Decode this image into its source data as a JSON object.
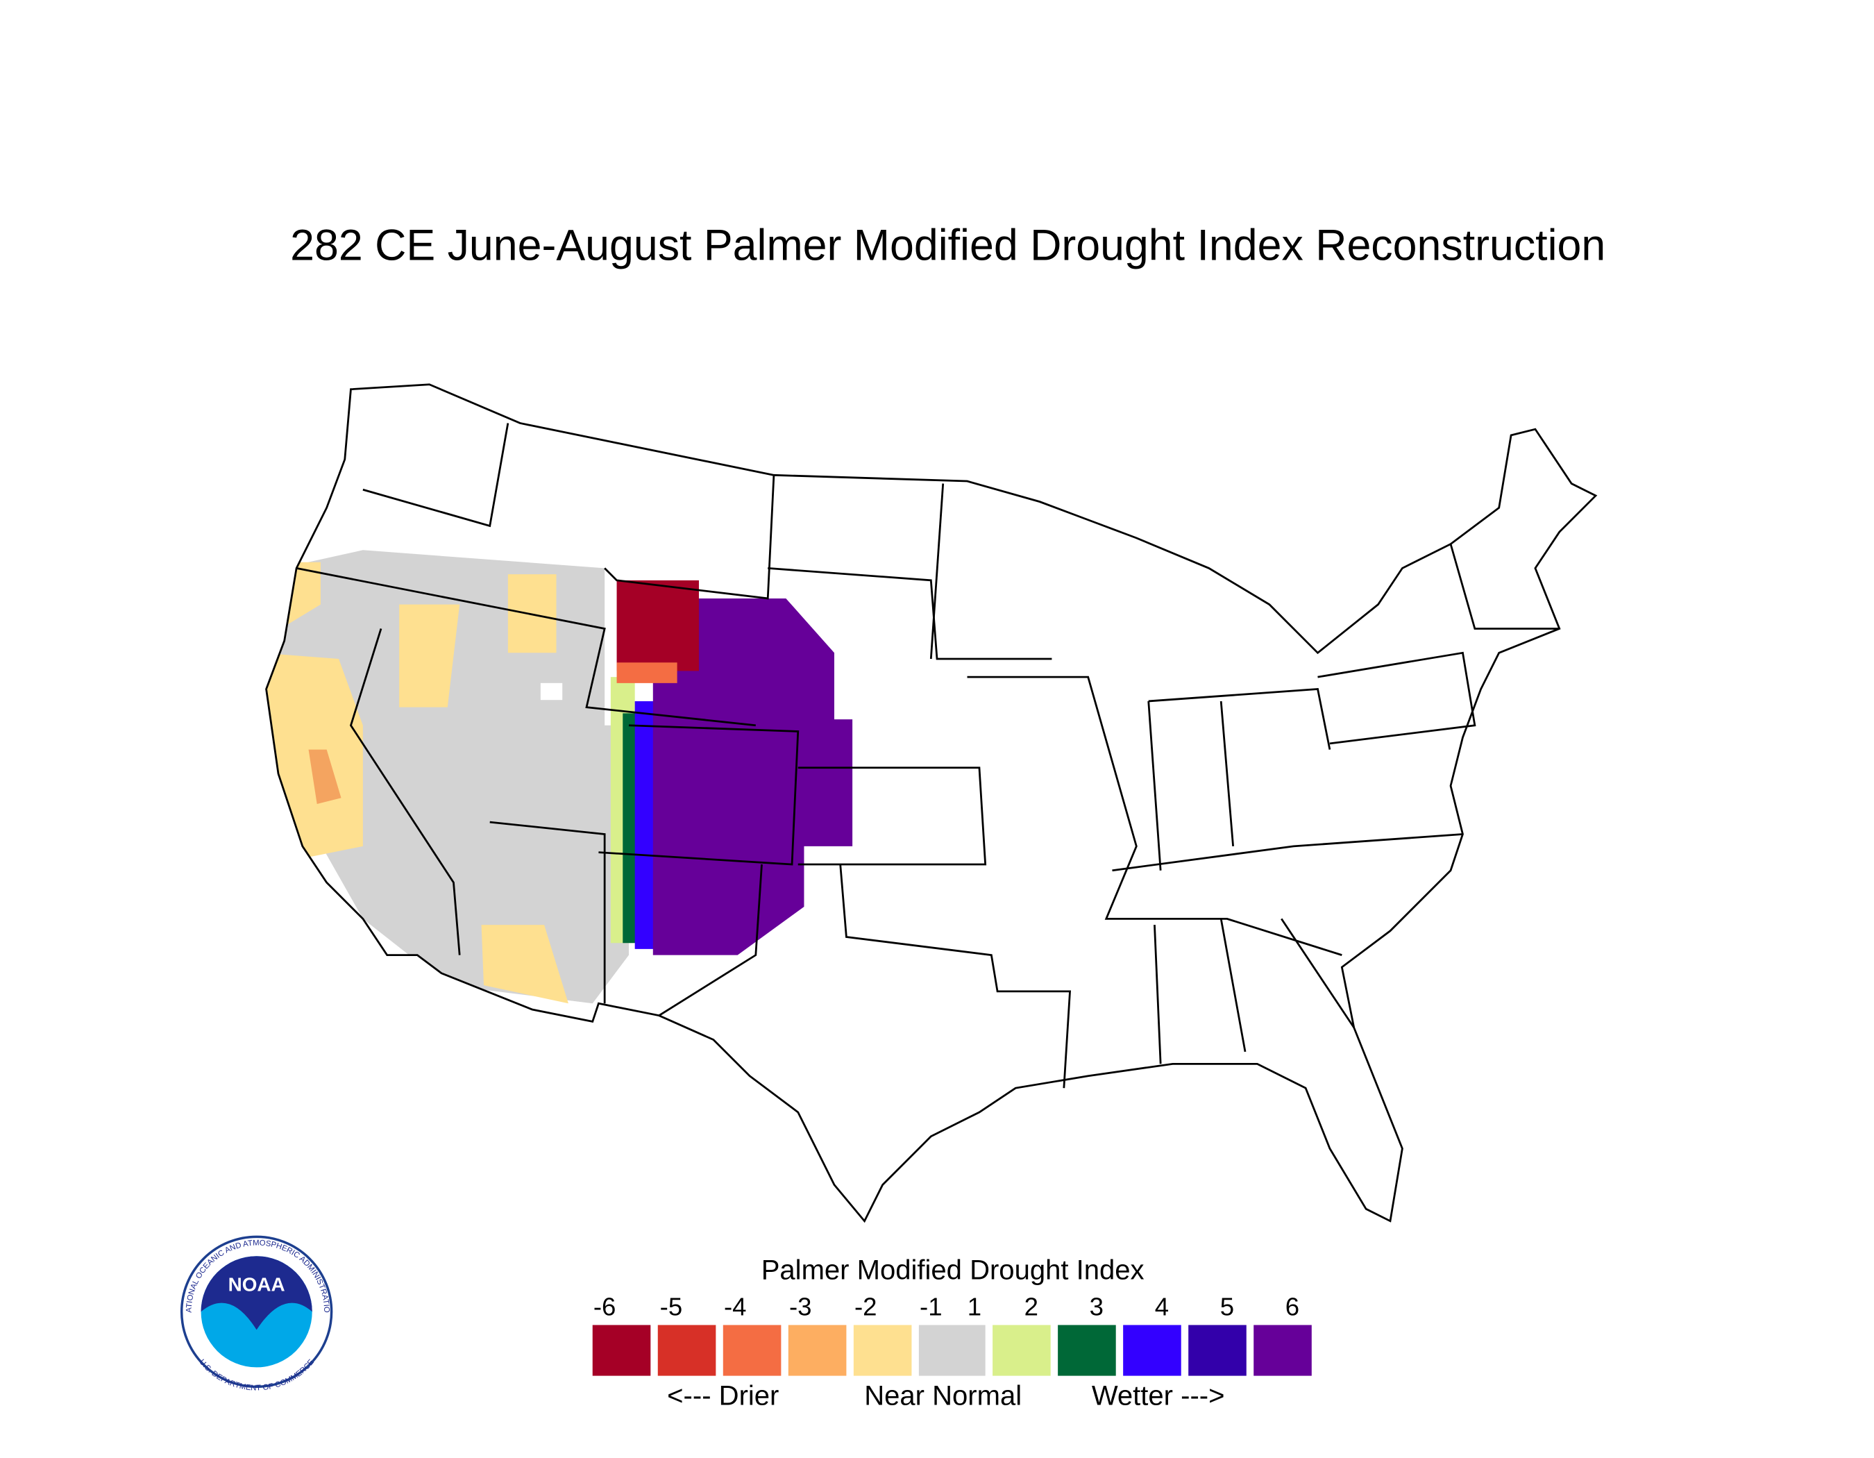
{
  "title": "282 CE  June-August  Palmer Modified Drought Index Reconstruction",
  "legend": {
    "title": "Palmer Modified Drought Index",
    "ticks": [
      -6,
      -5,
      -4,
      -3,
      -2,
      -1,
      1,
      2,
      3,
      4,
      5,
      6
    ],
    "colors": [
      "#a50026",
      "#d73027",
      "#f46d43",
      "#fdae61",
      "#fee090",
      "#d3d3d3",
      "#d9ef8b",
      "#006837",
      "#3300ff",
      "#3300aa",
      "#660099"
    ],
    "descriptors": [
      "<--- Drier",
      "Near Normal",
      "Wetter --->"
    ]
  },
  "logo": {
    "text": "NOAA",
    "ring_top": "NATIONAL OCEANIC AND ATMOSPHERIC ADMINISTRATION",
    "ring_bottom": "U.S. DEPARTMENT OF COMMERCE"
  }
}
